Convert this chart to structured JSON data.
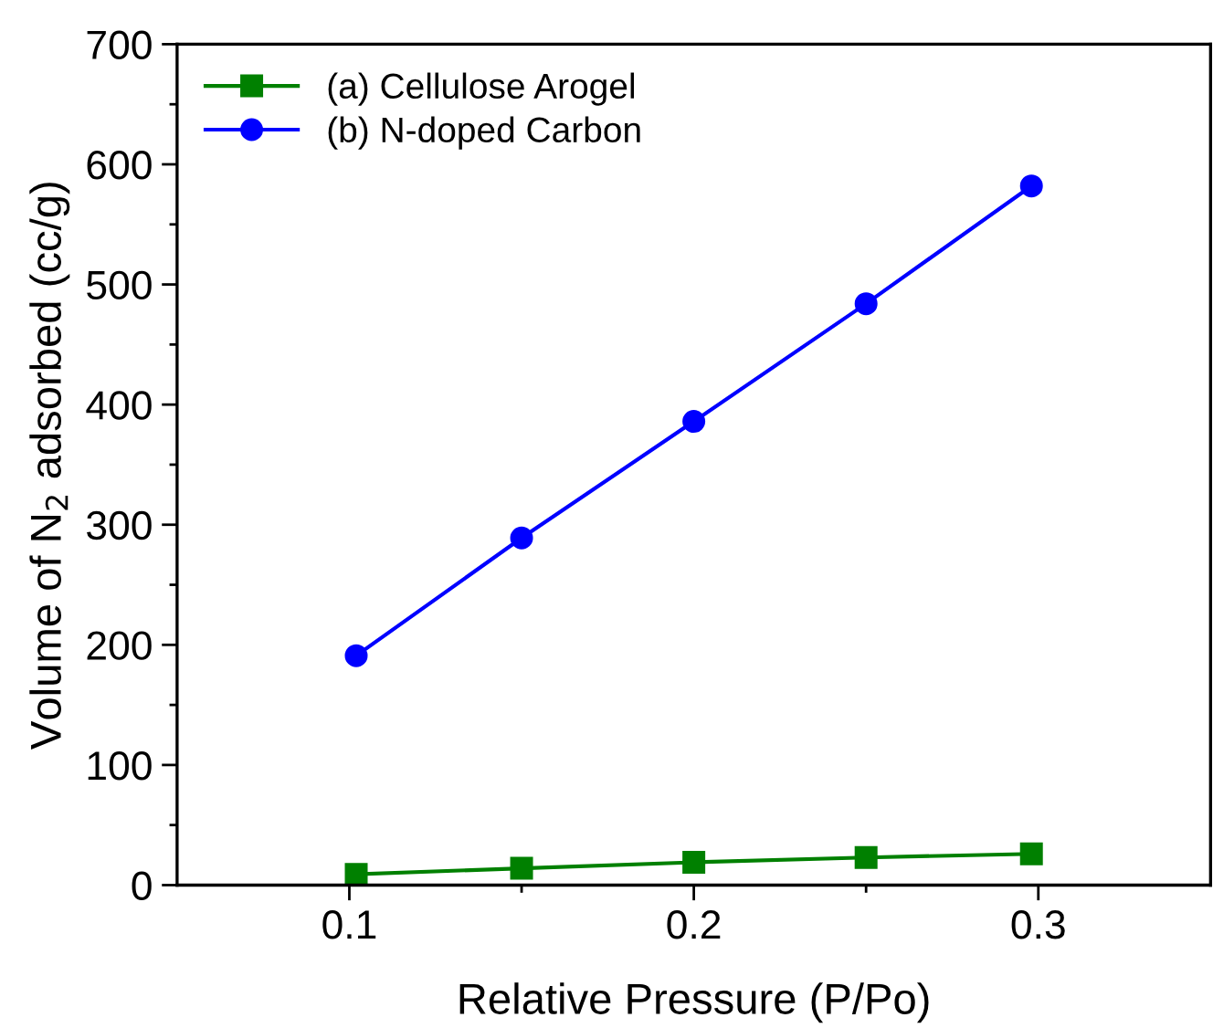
{
  "chart_data": {
    "type": "line",
    "xlabel": "Relative Pressure (P/Po)",
    "ylabel": "Volume of N$_{2}$ adsorbed (cc/g)",
    "series": [
      {
        "name": "(a) Cellulose Arogel",
        "color": "#008000",
        "marker": "square",
        "x": [
          0.102,
          0.15,
          0.2,
          0.25,
          0.298
        ],
        "values": [
          9,
          14,
          19,
          23,
          26
        ]
      },
      {
        "name": "(b) N-doped Carbon",
        "color": "#0000ff",
        "marker": "circle",
        "x": [
          0.102,
          0.15,
          0.2,
          0.25,
          0.298
        ],
        "values": [
          191,
          289,
          386,
          484,
          582
        ]
      }
    ],
    "xlim": [
      0.05,
      0.35
    ],
    "xticks": [
      0.1,
      {
        "value": 0.15,
        "label": null
      },
      0.2,
      {
        "value": 0.25,
        "label": null
      },
      0.3
    ],
    "ylim": [
      0,
      700
    ],
    "yticks": [
      0,
      {
        "value": 50,
        "label": null
      },
      100,
      {
        "value": 150,
        "label": null
      },
      200,
      {
        "value": 250,
        "label": null
      },
      300,
      {
        "value": 350,
        "label": null
      },
      400,
      {
        "value": 450,
        "label": null
      },
      500,
      {
        "value": 550,
        "label": null
      },
      600,
      {
        "value": 650,
        "label": null
      },
      700
    ],
    "line_style": "solid",
    "grid": false,
    "legend": "top left"
  }
}
